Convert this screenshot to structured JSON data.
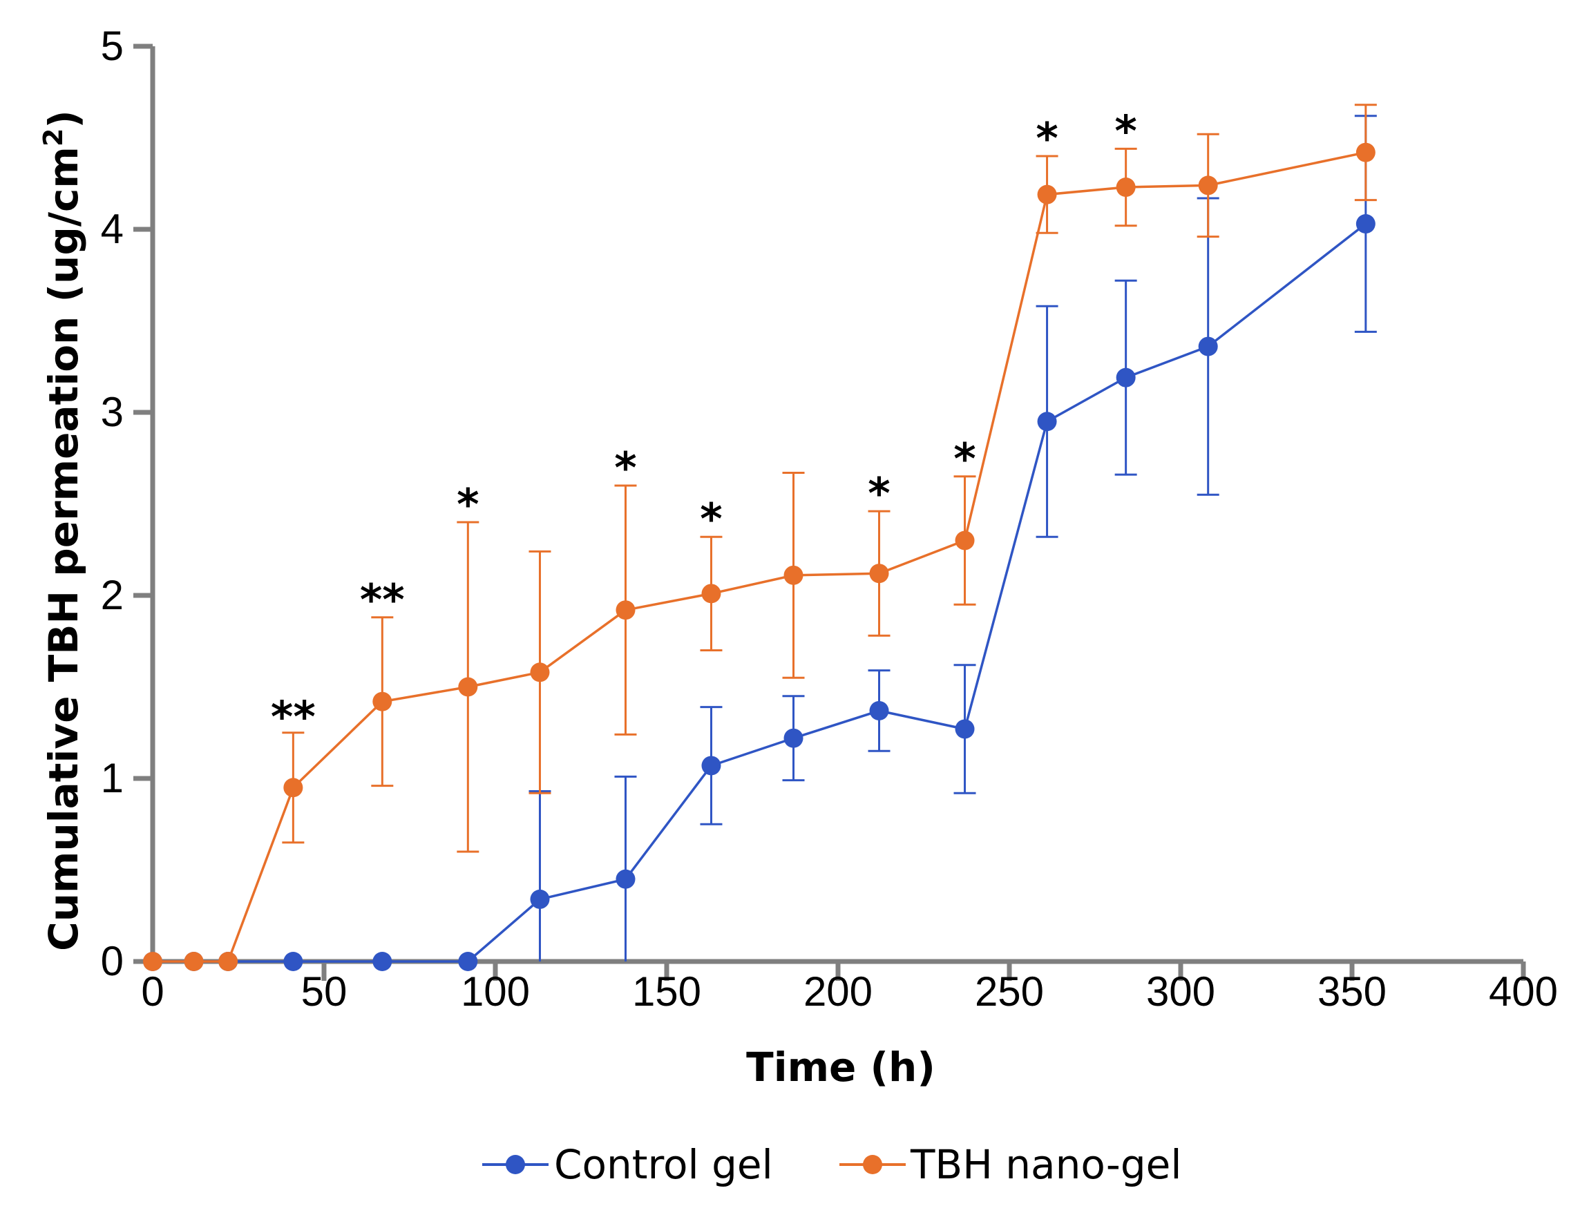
{
  "chart_data": {
    "type": "line",
    "title": "",
    "xlabel": "Time (h)",
    "ylabel_main": "Cumulative TBH permeation (ug/cm",
    "ylabel_sup": "2",
    "ylabel_end": ")",
    "xlim": [
      0,
      400
    ],
    "ylim": [
      0,
      5
    ],
    "xticks": [
      0,
      50,
      100,
      150,
      200,
      250,
      300,
      350,
      400
    ],
    "yticks": [
      0,
      1,
      2,
      3,
      4,
      5
    ],
    "grid": false,
    "legend_position": "bottom-center",
    "series": [
      {
        "name": "Control gel",
        "color": "#2f55c4",
        "x": [
          0,
          12,
          22,
          41,
          67,
          92,
          113,
          138,
          163,
          187,
          212,
          237,
          261,
          284,
          308,
          354
        ],
        "y": [
          0,
          0,
          0,
          0,
          0,
          0,
          0.34,
          0.45,
          1.07,
          1.22,
          1.37,
          1.27,
          2.95,
          3.19,
          3.36,
          4.03
        ],
        "err": [
          0,
          0,
          0,
          0,
          0,
          0,
          0.59,
          0.56,
          0.32,
          0.23,
          0.22,
          0.35,
          0.63,
          0.53,
          0.81,
          0.59
        ]
      },
      {
        "name": "TBH nano-gel",
        "color": "#e8702a",
        "x": [
          0,
          12,
          22,
          41,
          67,
          92,
          113,
          138,
          163,
          187,
          212,
          237,
          261,
          284,
          308,
          354
        ],
        "y": [
          0,
          0,
          0,
          0.95,
          1.42,
          1.5,
          1.58,
          1.92,
          2.01,
          2.11,
          2.12,
          2.3,
          4.19,
          4.23,
          4.24,
          4.42
        ],
        "err": [
          0,
          0,
          0,
          0.3,
          0.46,
          0.9,
          0.66,
          0.68,
          0.31,
          0.56,
          0.34,
          0.35,
          0.21,
          0.21,
          0.28,
          0.26
        ]
      }
    ],
    "annotations": [
      {
        "x": 41,
        "y": 1.24,
        "text": "**"
      },
      {
        "x": 67,
        "y": 1.88,
        "text": "**"
      },
      {
        "x": 92,
        "y": 2.4,
        "text": "*"
      },
      {
        "x": 138,
        "y": 2.6,
        "text": "*"
      },
      {
        "x": 163,
        "y": 2.32,
        "text": "*"
      },
      {
        "x": 212,
        "y": 2.46,
        "text": "*"
      },
      {
        "x": 237,
        "y": 2.65,
        "text": "*"
      },
      {
        "x": 261,
        "y": 4.4,
        "text": "*"
      },
      {
        "x": 284,
        "y": 4.44,
        "text": "*"
      }
    ]
  }
}
